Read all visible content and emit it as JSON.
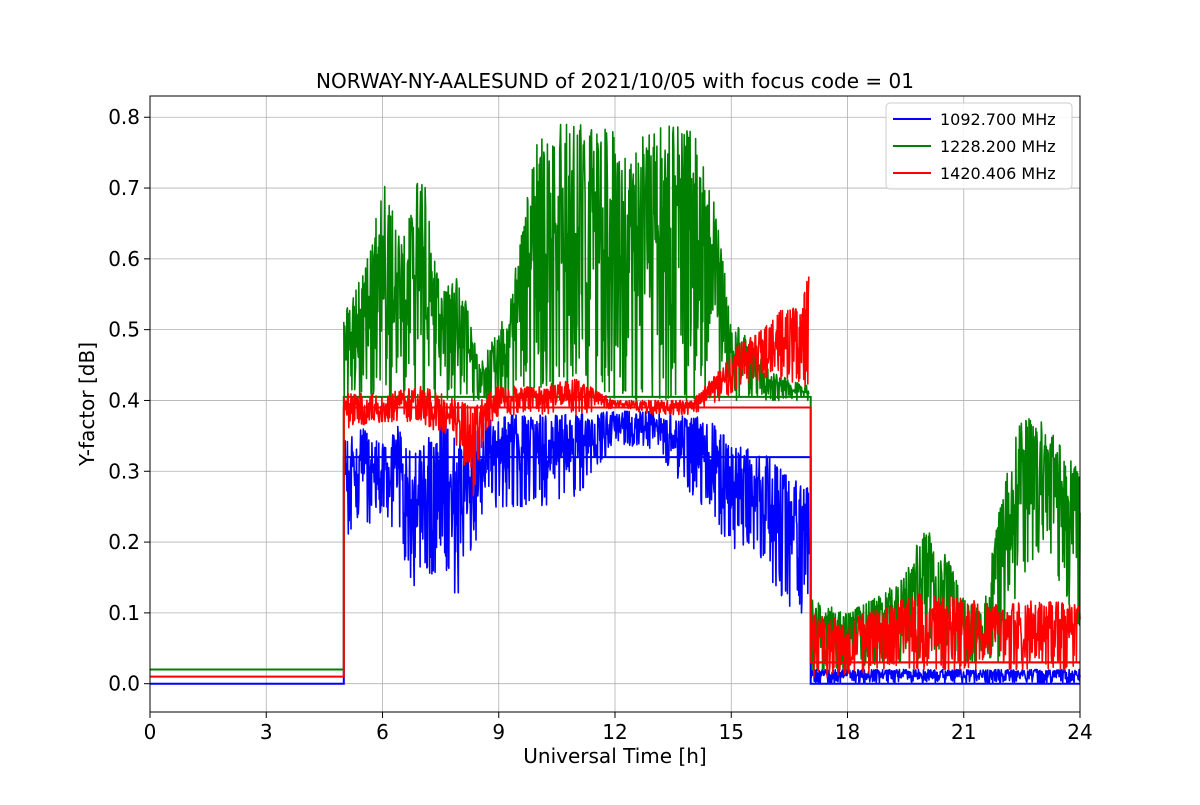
{
  "chart_data": {
    "type": "line",
    "title": "NORWAY-NY-AALESUND of 2021/10/05 with focus code = 01",
    "xlabel": "Universal Time [h]",
    "ylabel": "Y-factor [dB]",
    "xlim": [
      0,
      24
    ],
    "ylim": [
      -0.04,
      0.83
    ],
    "xticks": [
      0,
      3,
      6,
      9,
      12,
      15,
      18,
      21,
      24
    ],
    "yticks": [
      0.0,
      0.1,
      0.2,
      0.3,
      0.4,
      0.5,
      0.6,
      0.7,
      0.8
    ],
    "xtick_labels": [
      "0",
      "3",
      "6",
      "9",
      "12",
      "15",
      "18",
      "21",
      "24"
    ],
    "ytick_labels": [
      "0.0",
      "0.1",
      "0.2",
      "0.3",
      "0.4",
      "0.5",
      "0.6",
      "0.7",
      "0.8"
    ],
    "grid": true,
    "legend_position": "top-right",
    "series": [
      {
        "name": "1092.700 MHz",
        "color": "#0000ff",
        "baseline": [
          [
            0,
            0.0
          ],
          [
            5.0,
            0.0
          ],
          [
            5.0,
            0.32
          ],
          [
            17.05,
            0.32
          ],
          [
            17.05,
            0.0
          ],
          [
            24,
            0.0
          ]
        ],
        "envelope": [
          [
            5.0,
            0.2,
            0.35
          ],
          [
            5.5,
            0.22,
            0.36
          ],
          [
            6.0,
            0.24,
            0.34
          ],
          [
            6.5,
            0.2,
            0.37
          ],
          [
            6.7,
            0.12,
            0.33
          ],
          [
            7.0,
            0.16,
            0.33
          ],
          [
            7.5,
            0.15,
            0.38
          ],
          [
            8.0,
            0.12,
            0.36
          ],
          [
            8.2,
            0.16,
            0.34
          ],
          [
            8.5,
            0.22,
            0.37
          ],
          [
            9.0,
            0.25,
            0.38
          ],
          [
            10.0,
            0.25,
            0.38
          ],
          [
            11.0,
            0.26,
            0.38
          ],
          [
            12.0,
            0.34,
            0.385
          ],
          [
            13.0,
            0.33,
            0.385
          ],
          [
            13.5,
            0.3,
            0.38
          ],
          [
            14.0,
            0.26,
            0.38
          ],
          [
            14.5,
            0.23,
            0.37
          ],
          [
            15.0,
            0.18,
            0.34
          ],
          [
            15.5,
            0.2,
            0.33
          ],
          [
            16.0,
            0.14,
            0.32
          ],
          [
            16.5,
            0.11,
            0.29
          ],
          [
            17.0,
            0.08,
            0.28
          ]
        ],
        "tail": [
          [
            17.05,
            0.0,
            0.02
          ],
          [
            24,
            0.0,
            0.02
          ]
        ]
      },
      {
        "name": "1228.200 MHz",
        "color": "#008000",
        "baseline": [
          [
            0,
            0.02
          ],
          [
            5.0,
            0.02
          ],
          [
            5.0,
            0.405
          ],
          [
            17.05,
            0.405
          ],
          [
            17.05,
            0.03
          ],
          [
            24,
            0.03
          ]
        ],
        "envelope": [
          [
            5.0,
            0.4,
            0.52
          ],
          [
            5.5,
            0.4,
            0.58
          ],
          [
            6.0,
            0.4,
            0.72
          ],
          [
            6.5,
            0.4,
            0.62
          ],
          [
            7.0,
            0.4,
            0.74
          ],
          [
            7.5,
            0.4,
            0.55
          ],
          [
            8.0,
            0.4,
            0.58
          ],
          [
            8.5,
            0.4,
            0.45
          ],
          [
            9.0,
            0.4,
            0.5
          ],
          [
            9.5,
            0.4,
            0.6
          ],
          [
            10.0,
            0.42,
            0.79
          ],
          [
            10.5,
            0.4,
            0.79
          ],
          [
            11.0,
            0.4,
            0.79
          ],
          [
            11.5,
            0.4,
            0.79
          ],
          [
            12.0,
            0.4,
            0.78
          ],
          [
            12.5,
            0.4,
            0.76
          ],
          [
            13.0,
            0.4,
            0.79
          ],
          [
            13.5,
            0.4,
            0.79
          ],
          [
            14.0,
            0.4,
            0.79
          ],
          [
            14.5,
            0.4,
            0.7
          ],
          [
            15.0,
            0.4,
            0.52
          ],
          [
            16.0,
            0.4,
            0.44
          ],
          [
            17.0,
            0.4,
            0.42
          ]
        ],
        "tail": [
          [
            17.05,
            0.02,
            0.12
          ],
          [
            18.0,
            0.02,
            0.1
          ],
          [
            19.0,
            0.03,
            0.13
          ],
          [
            19.5,
            0.03,
            0.16
          ],
          [
            20.0,
            0.03,
            0.23
          ],
          [
            20.5,
            0.03,
            0.19
          ],
          [
            21.0,
            0.03,
            0.12
          ],
          [
            21.5,
            0.03,
            0.1
          ],
          [
            22.0,
            0.03,
            0.28
          ],
          [
            22.5,
            0.15,
            0.38
          ],
          [
            23.0,
            0.18,
            0.37
          ],
          [
            23.5,
            0.12,
            0.34
          ],
          [
            24.0,
            0.08,
            0.3
          ]
        ]
      },
      {
        "name": "1420.406 MHz",
        "color": "#ff0000",
        "baseline": [
          [
            0,
            0.01
          ],
          [
            5.0,
            0.01
          ],
          [
            5.0,
            0.39
          ],
          [
            17.05,
            0.39
          ],
          [
            17.05,
            0.03
          ],
          [
            24,
            0.03
          ]
        ],
        "envelope": [
          [
            5.0,
            0.36,
            0.41
          ],
          [
            6.0,
            0.37,
            0.41
          ],
          [
            7.0,
            0.37,
            0.42
          ],
          [
            8.0,
            0.33,
            0.4
          ],
          [
            8.3,
            0.25,
            0.39
          ],
          [
            8.7,
            0.36,
            0.41
          ],
          [
            9.0,
            0.38,
            0.42
          ],
          [
            10.0,
            0.38,
            0.42
          ],
          [
            11.0,
            0.38,
            0.43
          ],
          [
            12.0,
            0.39,
            0.4
          ],
          [
            13.0,
            0.38,
            0.4
          ],
          [
            14.0,
            0.38,
            0.4
          ],
          [
            14.8,
            0.4,
            0.45
          ],
          [
            15.2,
            0.42,
            0.48
          ],
          [
            15.8,
            0.43,
            0.5
          ],
          [
            16.3,
            0.43,
            0.53
          ],
          [
            16.8,
            0.42,
            0.53
          ],
          [
            17.0,
            0.42,
            0.58
          ]
        ],
        "tail": [
          [
            17.05,
            0.01,
            0.1
          ],
          [
            18.0,
            0.01,
            0.09
          ],
          [
            19.0,
            0.02,
            0.11
          ],
          [
            20.0,
            0.02,
            0.13
          ],
          [
            21.0,
            0.02,
            0.12
          ],
          [
            22.0,
            0.02,
            0.11
          ],
          [
            23.0,
            0.02,
            0.12
          ],
          [
            24.0,
            0.02,
            0.11
          ]
        ]
      }
    ]
  }
}
